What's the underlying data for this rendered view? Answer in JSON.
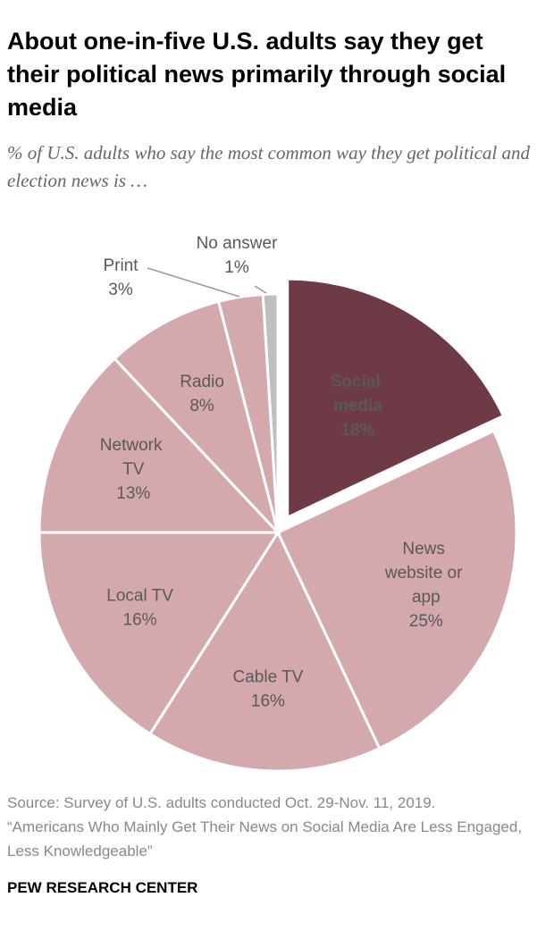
{
  "chart_data": {
    "type": "pie",
    "title": "About one-in-five U.S. adults say they get their political news primarily through social media",
    "subtitle": "% of U.S. adults who say the most common way they get political and election news is …",
    "categories": [
      "Social media",
      "News website or app",
      "Cable TV",
      "Local TV",
      "Network TV",
      "Radio",
      "Print",
      "No answer"
    ],
    "values": [
      18,
      25,
      16,
      16,
      13,
      8,
      3,
      1
    ],
    "value_labels": [
      "18%",
      "25%",
      "16%",
      "16%",
      "13%",
      "8%",
      "3%",
      "1%"
    ],
    "colors": [
      "#6e3a45",
      "#d3a9ae",
      "#d3a9ae",
      "#d3a9ae",
      "#d3a9ae",
      "#d3a9ae",
      "#d3a9ae",
      "#bfbfbf"
    ],
    "source": "Source: Survey of U.S. adults conducted Oct. 29-Nov. 11, 2019.",
    "note": "“Americans Who Mainly Get Their News on Social Media Are Less Engaged, Less Knowledgeable”",
    "footer": "PEW RESEARCH CENTER"
  }
}
